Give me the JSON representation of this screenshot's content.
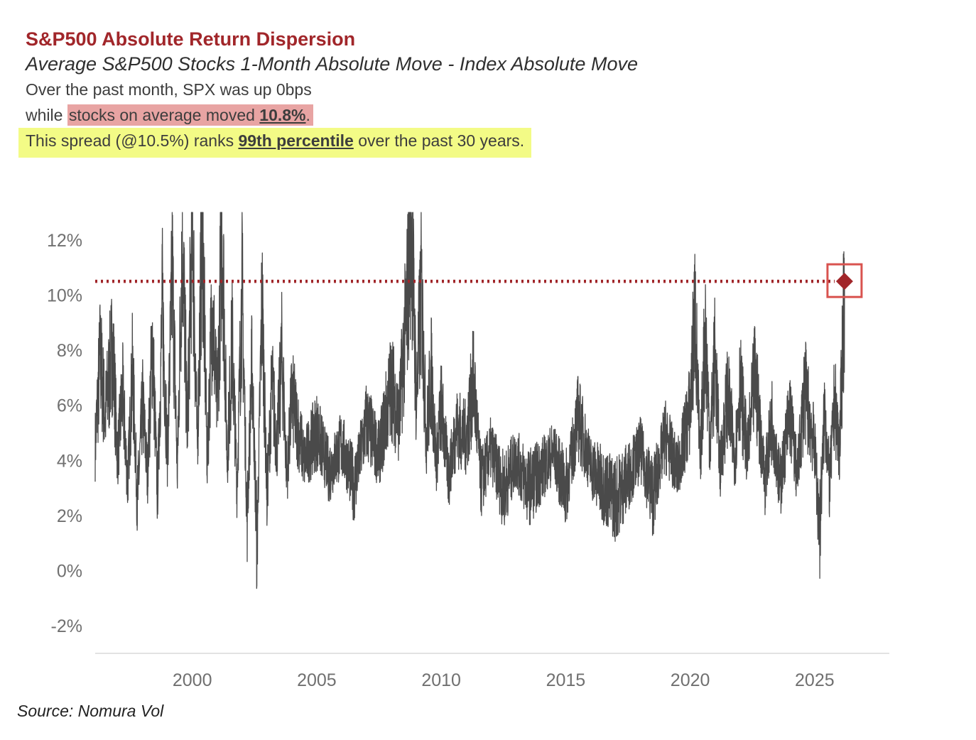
{
  "header": {
    "title": "S&P500 Absolute Return Dispersion",
    "subtitle": "Average S&P500 Stocks 1-Month Absolute Move - Index Absolute Move",
    "line1": "Over the past month, SPX was up 0bps",
    "line2_prefix": "while ",
    "line2_highlight": "stocks on average moved ",
    "line2_value": "10.8%",
    "line2_suffix": ".",
    "line3_prefix": "This spread (@10.5%) ranks ",
    "line3_emphasis": "99th percentile",
    "line3_suffix": " over the past 30 years."
  },
  "source": "Source: Nomura Vol",
  "colors": {
    "series": "#4a4a4a",
    "reference_line": "#a1262a",
    "marker": "#a1262a",
    "title": "#a1262a",
    "highlight_red": "#e8a4a3",
    "highlight_yellow": "#f3fb86"
  },
  "chart_data": {
    "type": "line",
    "title": "S&P500 Absolute Return Dispersion",
    "subtitle": "Average S&P500 Stocks 1-Month Absolute Move - Index Absolute Move",
    "xlabel": "",
    "ylabel": "",
    "xlim": [
      1996.1,
      2028.0
    ],
    "ylim": [
      -3.0,
      13.0
    ],
    "y_ticks": [
      12,
      10,
      8,
      6,
      4,
      2,
      0,
      -2
    ],
    "y_tick_labels": [
      "12%",
      "10%",
      "8%",
      "6%",
      "4%",
      "2%",
      "0%",
      "-2%"
    ],
    "x_ticks": [
      2000,
      2005,
      2010,
      2015,
      2020,
      2025
    ],
    "x_tick_labels": [
      "2000",
      "2005",
      "2010",
      "2015",
      "2020",
      "2025"
    ],
    "grid": false,
    "legend": "none",
    "reference_line": {
      "y": 10.5,
      "style": "dotted"
    },
    "latest_point": {
      "x": 2026.2,
      "y": 10.5,
      "marker": "diamond",
      "boxed": true
    },
    "series": [
      {
        "values_description_free": true,
        "x": [
          1996.1,
          1996.3,
          1996.5,
          1996.8,
          1997.0,
          1997.2,
          1997.4,
          1997.6,
          1997.8,
          1998.0,
          1998.2,
          1998.4,
          1998.6,
          1998.8,
          1999.0,
          1999.2,
          1999.4,
          1999.6,
          1999.8,
          2000.0,
          2000.2,
          2000.4,
          2000.6,
          2000.8,
          2001.0,
          2001.2,
          2001.4,
          2001.6,
          2001.8,
          2002.0,
          2002.2,
          2002.4,
          2002.6,
          2002.8,
          2003.0,
          2003.2,
          2003.4,
          2003.6,
          2003.8,
          2004.0,
          2004.5,
          2005.0,
          2005.5,
          2006.0,
          2006.5,
          2007.0,
          2007.5,
          2008.0,
          2008.3,
          2008.6,
          2008.8,
          2009.0,
          2009.2,
          2009.4,
          2009.6,
          2009.8,
          2010.0,
          2010.3,
          2010.6,
          2011.0,
          2011.3,
          2011.6,
          2012.0,
          2012.5,
          2013.0,
          2013.5,
          2014.0,
          2014.5,
          2015.0,
          2015.5,
          2016.0,
          2016.5,
          2017.0,
          2017.5,
          2018.0,
          2018.5,
          2019.0,
          2019.5,
          2020.0,
          2020.2,
          2020.4,
          2020.6,
          2020.8,
          2021.0,
          2021.2,
          2021.5,
          2021.8,
          2022.0,
          2022.3,
          2022.6,
          2023.0,
          2023.3,
          2023.6,
          2024.0,
          2024.3,
          2024.6,
          2025.0,
          2025.2,
          2025.4,
          2025.6,
          2025.8,
          2026.0,
          2026.2
        ],
        "values": [
          4.5,
          7.8,
          5.6,
          8.2,
          4.1,
          6.5,
          3.2,
          7.3,
          2.4,
          6.1,
          3.5,
          8.4,
          2.8,
          9.6,
          4.2,
          10.8,
          3.6,
          12.5,
          5.0,
          13.0,
          4.4,
          12.8,
          3.9,
          9.7,
          5.8,
          12.9,
          4.0,
          8.3,
          3.1,
          10.4,
          1.8,
          7.6,
          0.8,
          9.9,
          2.7,
          6.8,
          4.5,
          7.9,
          3.4,
          6.3,
          4.0,
          5.1,
          3.6,
          4.6,
          3.1,
          5.4,
          4.2,
          6.8,
          5.4,
          9.3,
          12.9,
          6.1,
          10.3,
          4.8,
          7.2,
          3.9,
          6.0,
          3.4,
          5.2,
          4.8,
          6.9,
          3.2,
          4.4,
          2.9,
          4.1,
          3.0,
          3.6,
          4.3,
          2.9,
          5.6,
          3.8,
          3.1,
          2.6,
          3.4,
          4.4,
          2.7,
          4.9,
          3.6,
          5.9,
          9.5,
          3.8,
          8.8,
          4.6,
          7.9,
          3.7,
          6.4,
          4.1,
          6.8,
          4.2,
          7.1,
          3.3,
          5.6,
          3.0,
          5.8,
          3.4,
          6.6,
          4.5,
          1.4,
          5.9,
          3.1,
          6.2,
          4.3,
          10.5
        ]
      }
    ]
  }
}
